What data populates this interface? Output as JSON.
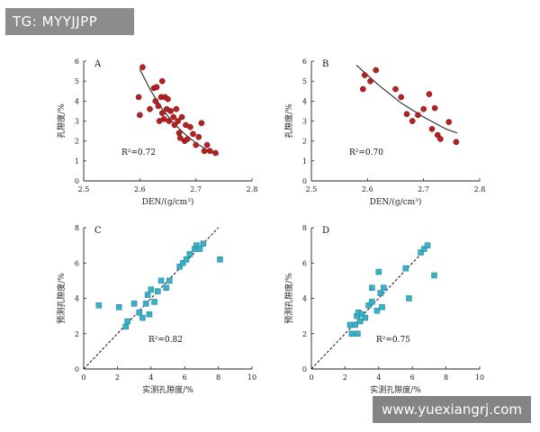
{
  "watermarks": {
    "top_left": "TG: MYYJJPP",
    "bottom_right": "www.yuexiangrj.com"
  },
  "chart_data": [
    {
      "panel": "A",
      "type": "scatter",
      "xlabel": "DEN/(g/cm³)",
      "ylabel": "孔隙度/%",
      "xlim": [
        2.5,
        2.8
      ],
      "ylim": [
        0,
        6
      ],
      "xticks": [
        2.5,
        2.6,
        2.7,
        2.8
      ],
      "xtick_labels": [
        "2.5",
        "2.6",
        "2.7",
        "2.8"
      ],
      "yticks": [
        0,
        1,
        2,
        3,
        4,
        5,
        6
      ],
      "ytick_labels": [
        "0",
        "1",
        "2",
        "3",
        "4",
        "5",
        "6"
      ],
      "r2_label": "R²=0.72",
      "marker": "circle",
      "color": "#b22222",
      "fit": {
        "type": "curve",
        "x": [
          2.6,
          2.62,
          2.64,
          2.66,
          2.68,
          2.7,
          2.72,
          2.74
        ],
        "y": [
          5.6,
          4.5,
          3.6,
          2.9,
          2.35,
          1.9,
          1.55,
          1.3
        ]
      },
      "points": [
        [
          2.598,
          4.2
        ],
        [
          2.6,
          3.3
        ],
        [
          2.605,
          5.7
        ],
        [
          2.618,
          3.6
        ],
        [
          2.625,
          4.65
        ],
        [
          2.628,
          4.0
        ],
        [
          2.63,
          4.7
        ],
        [
          2.633,
          3.75
        ],
        [
          2.635,
          3.0
        ],
        [
          2.638,
          4.2
        ],
        [
          2.64,
          5.0
        ],
        [
          2.64,
          3.4
        ],
        [
          2.643,
          3.1
        ],
        [
          2.645,
          4.2
        ],
        [
          2.648,
          3.6
        ],
        [
          2.65,
          4.1
        ],
        [
          2.652,
          3.0
        ],
        [
          2.655,
          3.5
        ],
        [
          2.66,
          3.2
        ],
        [
          2.662,
          2.8
        ],
        [
          2.665,
          3.6
        ],
        [
          2.668,
          3.0
        ],
        [
          2.67,
          2.4
        ],
        [
          2.672,
          2.15
        ],
        [
          2.675,
          3.2
        ],
        [
          2.68,
          2.0
        ],
        [
          2.682,
          2.8
        ],
        [
          2.685,
          2.1
        ],
        [
          2.69,
          2.7
        ],
        [
          2.695,
          2.35
        ],
        [
          2.7,
          1.8
        ],
        [
          2.705,
          2.2
        ],
        [
          2.71,
          2.9
        ],
        [
          2.715,
          1.5
        ],
        [
          2.72,
          1.8
        ],
        [
          2.725,
          1.5
        ],
        [
          2.735,
          1.4
        ]
      ]
    },
    {
      "panel": "B",
      "type": "scatter",
      "xlabel": "DEN/(g/cm³)",
      "ylabel": "孔隙度/%",
      "xlim": [
        2.5,
        2.8
      ],
      "ylim": [
        0,
        6
      ],
      "xticks": [
        2.5,
        2.6,
        2.7,
        2.8
      ],
      "xtick_labels": [
        "2.5",
        "2.6",
        "2.7",
        "2.8"
      ],
      "yticks": [
        0,
        1,
        2,
        3,
        4,
        5,
        6
      ],
      "ytick_labels": [
        "0",
        "1",
        "2",
        "3",
        "4",
        "5",
        "6"
      ],
      "r2_label": "R²=0.70",
      "marker": "circle",
      "color": "#b22222",
      "fit": {
        "type": "curve",
        "x": [
          2.58,
          2.62,
          2.66,
          2.7,
          2.74,
          2.76
        ],
        "y": [
          5.8,
          4.8,
          3.9,
          3.2,
          2.6,
          2.4
        ]
      },
      "points": [
        [
          2.592,
          4.6
        ],
        [
          2.595,
          5.3
        ],
        [
          2.605,
          5.0
        ],
        [
          2.615,
          5.55
        ],
        [
          2.65,
          4.6
        ],
        [
          2.66,
          4.2
        ],
        [
          2.67,
          3.35
        ],
        [
          2.68,
          3.0
        ],
        [
          2.69,
          3.3
        ],
        [
          2.7,
          3.6
        ],
        [
          2.71,
          4.35
        ],
        [
          2.715,
          2.6
        ],
        [
          2.72,
          3.65
        ],
        [
          2.725,
          2.3
        ],
        [
          2.73,
          2.1
        ],
        [
          2.745,
          2.95
        ],
        [
          2.758,
          1.95
        ]
      ]
    },
    {
      "panel": "C",
      "type": "scatter",
      "xlabel": "实测孔隙度/%",
      "ylabel": "预测孔隙度/%",
      "xlim": [
        0,
        10
      ],
      "ylim": [
        0,
        8
      ],
      "xticks": [
        0,
        2,
        4,
        6,
        8,
        10
      ],
      "xtick_labels": [
        "0",
        "2",
        "4",
        "6",
        "8",
        "10"
      ],
      "yticks": [
        0,
        2,
        4,
        6,
        8
      ],
      "ytick_labels": [
        "0",
        "2",
        "4",
        "6",
        "8"
      ],
      "r2_label": "R²=0.82",
      "marker": "square",
      "color": "#3ab0c8",
      "fit": {
        "type": "identity",
        "x": [
          0,
          8
        ],
        "y": [
          0,
          8
        ]
      },
      "points": [
        [
          0.9,
          3.6
        ],
        [
          2.1,
          3.5
        ],
        [
          2.5,
          2.4
        ],
        [
          2.6,
          2.7
        ],
        [
          3.0,
          3.7
        ],
        [
          3.3,
          3.2
        ],
        [
          3.5,
          2.9
        ],
        [
          3.7,
          3.7
        ],
        [
          3.8,
          4.2
        ],
        [
          3.9,
          3.1
        ],
        [
          4.0,
          4.5
        ],
        [
          4.2,
          3.8
        ],
        [
          4.4,
          4.4
        ],
        [
          4.6,
          5.0
        ],
        [
          4.9,
          4.6
        ],
        [
          5.1,
          5.0
        ],
        [
          5.7,
          5.8
        ],
        [
          5.9,
          6.0
        ],
        [
          6.1,
          6.2
        ],
        [
          6.3,
          6.5
        ],
        [
          6.6,
          6.8
        ],
        [
          6.7,
          7.0
        ],
        [
          6.9,
          6.8
        ],
        [
          7.1,
          7.1
        ],
        [
          8.1,
          6.2
        ]
      ]
    },
    {
      "panel": "D",
      "type": "scatter",
      "xlabel": "实测孔隙度/%",
      "ylabel": "预测孔隙度/%",
      "xlim": [
        0,
        10
      ],
      "ylim": [
        0,
        8
      ],
      "xticks": [
        0,
        2,
        4,
        6,
        8,
        10
      ],
      "xtick_labels": [
        "0",
        "2",
        "4",
        "6",
        "8",
        "10"
      ],
      "yticks": [
        0,
        2,
        4,
        6,
        8
      ],
      "ytick_labels": [
        "0",
        "2",
        "4",
        "6",
        "8"
      ],
      "r2_label": "R²=0.75",
      "marker": "square",
      "color": "#3ab0c8",
      "fit": {
        "type": "identity",
        "x": [
          0,
          7
        ],
        "y": [
          0,
          7
        ]
      },
      "points": [
        [
          2.3,
          2.5
        ],
        [
          2.4,
          2.0
        ],
        [
          2.6,
          2.5
        ],
        [
          2.7,
          3.0
        ],
        [
          2.75,
          2.0
        ],
        [
          2.8,
          3.2
        ],
        [
          2.9,
          2.7
        ],
        [
          3.0,
          3.1
        ],
        [
          3.2,
          2.9
        ],
        [
          3.4,
          3.6
        ],
        [
          3.6,
          3.8
        ],
        [
          3.6,
          4.6
        ],
        [
          3.9,
          3.3
        ],
        [
          4.0,
          5.5
        ],
        [
          4.1,
          4.3
        ],
        [
          4.2,
          3.5
        ],
        [
          4.3,
          4.6
        ],
        [
          5.6,
          5.7
        ],
        [
          5.8,
          4.0
        ],
        [
          6.5,
          6.6
        ],
        [
          6.7,
          6.8
        ],
        [
          6.9,
          7.0
        ],
        [
          7.3,
          5.3
        ]
      ]
    }
  ]
}
